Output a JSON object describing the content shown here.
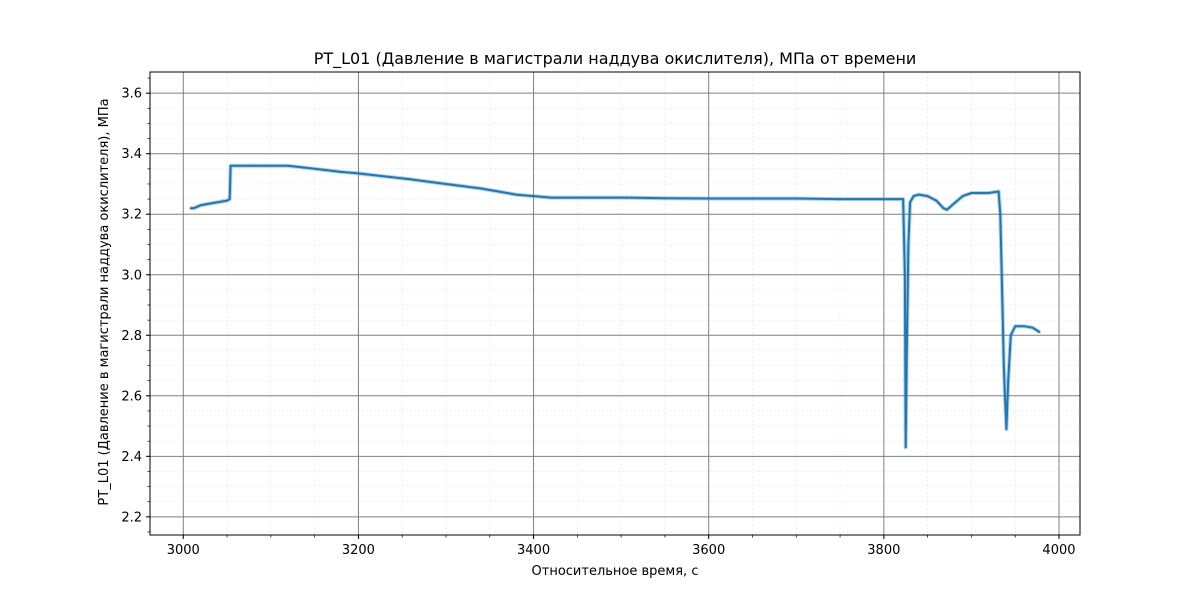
{
  "chart_data": {
    "type": "line",
    "title": "PT_L01 (Давление в магистрали наддува окислителя), МПа от времени",
    "xlabel": "Относительное время, с",
    "ylabel": "PT_L01 (Давление в магистрали наддува окислителя), МПа",
    "xlim": [
      2962,
      4024
    ],
    "ylim": [
      2.14,
      3.67
    ],
    "x_ticks": [
      3000,
      3200,
      3400,
      3600,
      3800,
      4000
    ],
    "y_ticks": [
      2.2,
      2.4,
      2.6,
      2.8,
      3.0,
      3.2,
      3.4,
      3.6
    ],
    "x_tick_labels": [
      "3000",
      "3200",
      "3400",
      "3600",
      "3800",
      "4000"
    ],
    "y_tick_labels": [
      "2.2",
      "2.4",
      "2.6",
      "2.8",
      "3.0",
      "3.2",
      "3.4",
      "3.6"
    ],
    "grid": true,
    "minor_grid": true,
    "series_color": "#1f77b4",
    "series": [
      {
        "x": [
          3008,
          3012,
          3020,
          3030,
          3040,
          3050,
          3053,
          3054,
          3060,
          3080,
          3100,
          3120,
          3150,
          3180,
          3200,
          3230,
          3260,
          3300,
          3340,
          3360,
          3380,
          3400,
          3420,
          3450,
          3500,
          3550,
          3600,
          3650,
          3700,
          3750,
          3790,
          3800,
          3810,
          3822,
          3824,
          3825,
          3826,
          3828,
          3830,
          3834,
          3840,
          3850,
          3860,
          3868,
          3872,
          3880,
          3890,
          3900,
          3910,
          3920,
          3931,
          3933,
          3935,
          3937,
          3938,
          3940,
          3942,
          3945,
          3950,
          3960,
          3970,
          3978
        ],
        "y": [
          3.22,
          3.22,
          3.23,
          3.235,
          3.24,
          3.245,
          3.25,
          3.36,
          3.36,
          3.36,
          3.36,
          3.36,
          3.35,
          3.34,
          3.335,
          3.325,
          3.315,
          3.3,
          3.285,
          3.275,
          3.265,
          3.26,
          3.255,
          3.255,
          3.255,
          3.253,
          3.252,
          3.252,
          3.252,
          3.25,
          3.25,
          3.25,
          3.25,
          3.25,
          3.0,
          2.43,
          2.7,
          3.1,
          3.24,
          3.26,
          3.265,
          3.26,
          3.245,
          3.22,
          3.215,
          3.235,
          3.26,
          3.27,
          3.27,
          3.27,
          3.275,
          3.2,
          2.95,
          2.7,
          2.62,
          2.49,
          2.65,
          2.8,
          2.83,
          2.83,
          2.825,
          2.81
        ]
      }
    ]
  }
}
